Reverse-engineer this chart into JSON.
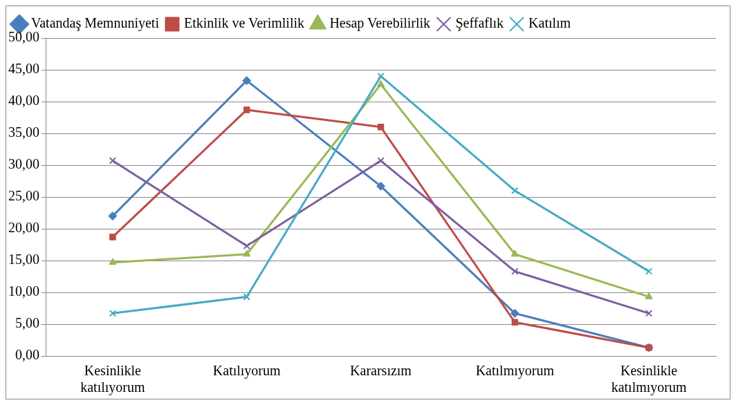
{
  "chart_data": {
    "type": "line",
    "categories": [
      "Kesinlikle katılıyorum",
      "Katılıyorum",
      "Kararsızım",
      "Katılmıyorum",
      "Kesinlikle katılmıyorum"
    ],
    "series": [
      {
        "name": "Vatandaş Memnuniyeti",
        "color": "#4a7ebb",
        "marker": "diamond",
        "values": [
          22.0,
          43.3,
          26.7,
          6.7,
          1.3
        ]
      },
      {
        "name": "Etkinlik ve Verimlilik",
        "color": "#be4b48",
        "marker": "square",
        "values": [
          18.7,
          38.7,
          36.0,
          5.3,
          1.3
        ]
      },
      {
        "name": "Hesap Verebilirlik",
        "color": "#98b954",
        "marker": "triangle",
        "values": [
          14.7,
          16.0,
          42.7,
          16.0,
          9.3
        ]
      },
      {
        "name": "Şeffaflık",
        "color": "#7d60a0",
        "marker": "cross",
        "values": [
          30.7,
          17.3,
          30.7,
          13.3,
          6.7
        ]
      },
      {
        "name": "Katılım",
        "color": "#46aac5",
        "marker": "cross",
        "values": [
          6.7,
          9.3,
          44.0,
          26.0,
          13.3
        ]
      }
    ],
    "ylim": [
      0,
      50
    ],
    "yticks": [
      {
        "value": 0,
        "label": "0,00"
      },
      {
        "value": 5,
        "label": "5,00"
      },
      {
        "value": 10,
        "label": "10,00"
      },
      {
        "value": 15,
        "label": "15,00"
      },
      {
        "value": 20,
        "label": "20,00"
      },
      {
        "value": 25,
        "label": "25,00"
      },
      {
        "value": 30,
        "label": "30,00"
      },
      {
        "value": 35,
        "label": "35,00"
      },
      {
        "value": 40,
        "label": "40,00"
      },
      {
        "value": 45,
        "label": "45,00"
      },
      {
        "value": 50,
        "label": "50,00"
      }
    ],
    "grid": "y",
    "legend": "top",
    "line_style": "solid"
  }
}
